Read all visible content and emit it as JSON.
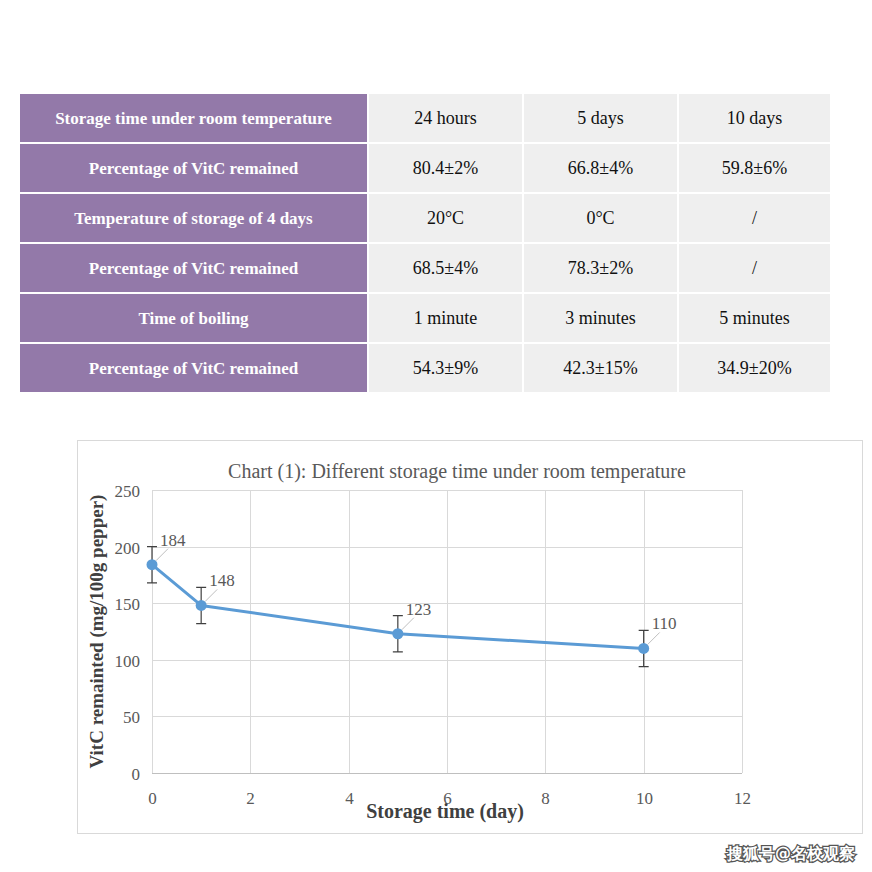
{
  "table": {
    "rows": [
      [
        "Storage time under room temperature",
        "24 hours",
        "5 days",
        "10 days"
      ],
      [
        "Percentage of VitC remained",
        "80.4±2%",
        "66.8±4%",
        "59.8±6%"
      ],
      [
        "Temperature of storage of 4 days",
        "20°C",
        "0°C",
        "/"
      ],
      [
        "Percentage of VitC remained",
        "68.5±4%",
        "78.3±2%",
        "/"
      ],
      [
        "Time of boiling",
        "1 minute",
        "3 minutes",
        "5 minutes"
      ],
      [
        "Percentage of VitC remained",
        "54.3±9%",
        "42.3±15%",
        "34.9±20%"
      ]
    ]
  },
  "chart_data": {
    "type": "line",
    "title": "Chart (1): Different storage time under room temperature",
    "x_label": "Storage time (day)",
    "y_label": "VitC remainted (mg/100g pepper)",
    "x": [
      0,
      1,
      5,
      10
    ],
    "values": [
      184,
      148,
      123,
      110
    ],
    "errors": [
      16,
      16,
      16,
      16
    ],
    "color": "#5b9bd5",
    "marker": "circle",
    "xlim": [
      0,
      12
    ],
    "ylim": [
      0,
      250
    ],
    "xticks": [
      0,
      2,
      4,
      6,
      8,
      10,
      12
    ],
    "yticks": [
      0,
      50,
      100,
      150,
      200,
      250
    ],
    "grid": true,
    "data_labels": true
  },
  "watermark": "搜狐号@名校观察"
}
